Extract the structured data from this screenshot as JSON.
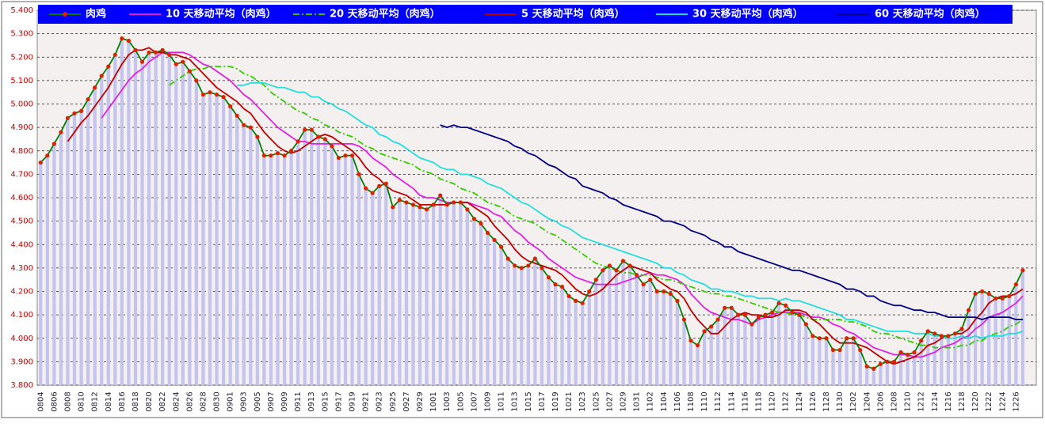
{
  "chart_data": {
    "type": "line",
    "categories": [
      "0804",
      null,
      "0806",
      null,
      "0808",
      null,
      "0810",
      null,
      "0812",
      null,
      "0814",
      null,
      "0816",
      null,
      "0818",
      null,
      "0820",
      null,
      "0822",
      null,
      "0824",
      null,
      "0826",
      null,
      "0828",
      null,
      "0830",
      null,
      "0901",
      null,
      "0903",
      null,
      "0905",
      null,
      "0907",
      null,
      "0909",
      null,
      "0911",
      null,
      "0913",
      null,
      "0915",
      null,
      "0917",
      null,
      "0919",
      null,
      "0921",
      null,
      "0923",
      null,
      "0925",
      null,
      "0927",
      null,
      "0929",
      null,
      "1001",
      null,
      "1003",
      null,
      "1005",
      null,
      "1007",
      null,
      "1009",
      null,
      "1011",
      null,
      "1013",
      null,
      "1015",
      null,
      "1017",
      null,
      "1019",
      null,
      "1021",
      null,
      "1023",
      null,
      "1025",
      null,
      "1027",
      null,
      "1029",
      null,
      "1031",
      null,
      "1102",
      null,
      "1104",
      null,
      "1106",
      null,
      "1108",
      null,
      "1110",
      null,
      "1112",
      null,
      "1114",
      null,
      "1116",
      null,
      "1118",
      null,
      "1120",
      null,
      "1122",
      null,
      "1124",
      null,
      "1126",
      null,
      "1128",
      null,
      "1130",
      null,
      "1202",
      null,
      "1204",
      null,
      "1206",
      null,
      "1208",
      null,
      "1210",
      null,
      "1212",
      null,
      "1214",
      null,
      "1216",
      null,
      "1218",
      null,
      "1220",
      null,
      "1222",
      null,
      "1224",
      null,
      "1226",
      null
    ],
    "series": [
      {
        "name": "肉鸡",
        "color": "#008000",
        "marker_color": "#e02000",
        "bar_color": "#c4c4ee",
        "line_style": "solid",
        "marker": "circle",
        "values": [
          4.75,
          4.78,
          4.83,
          4.88,
          4.94,
          4.96,
          4.97,
          5.02,
          5.07,
          5.12,
          5.16,
          5.21,
          5.28,
          5.27,
          5.23,
          5.18,
          5.22,
          5.22,
          5.23,
          5.21,
          5.17,
          5.18,
          5.14,
          5.1,
          5.04,
          5.05,
          5.04,
          5.03,
          4.99,
          4.95,
          4.91,
          4.9,
          4.86,
          4.78,
          4.78,
          4.79,
          4.78,
          4.8,
          4.84,
          4.89,
          4.89,
          4.86,
          4.85,
          4.82,
          4.77,
          4.78,
          4.78,
          4.7,
          4.64,
          4.62,
          4.65,
          4.66,
          4.56,
          4.59,
          4.58,
          4.57,
          4.56,
          4.55,
          4.57,
          4.61,
          4.57,
          4.58,
          4.58,
          4.55,
          4.51,
          4.49,
          4.45,
          4.42,
          4.39,
          4.34,
          4.31,
          4.3,
          4.31,
          4.34,
          4.3,
          4.26,
          4.23,
          4.22,
          4.18,
          4.16,
          4.15,
          4.2,
          4.25,
          4.29,
          4.31,
          4.29,
          4.33,
          4.31,
          4.27,
          4.23,
          4.25,
          4.2,
          4.2,
          4.19,
          4.16,
          4.08,
          3.99,
          3.97,
          4.03,
          4.05,
          4.08,
          4.13,
          4.13,
          4.1,
          4.1,
          4.06,
          4.09,
          4.1,
          4.11,
          4.15,
          4.14,
          4.11,
          4.1,
          4.06,
          4.01,
          4.0,
          4.0,
          3.95,
          3.95,
          4.0,
          4.0,
          3.95,
          3.88,
          3.87,
          3.89,
          3.9,
          3.9,
          3.94,
          3.93,
          3.94,
          3.99,
          4.03,
          4.02,
          4.01,
          4.01,
          4.02,
          4.04,
          4.12,
          4.19,
          4.2,
          4.19,
          4.17,
          4.17,
          4.18,
          4.23,
          4.29
        ]
      },
      {
        "name": "10 天移动平均（肉鸡）",
        "color": "#e020e0",
        "line_style": "solid",
        "values": [
          null,
          null,
          null,
          null,
          null,
          null,
          null,
          null,
          null,
          4.94,
          4.98,
          5.02,
          5.06,
          5.1,
          5.13,
          5.15,
          5.18,
          5.2,
          5.22,
          5.22,
          5.22,
          5.22,
          5.21,
          5.19,
          5.17,
          5.16,
          5.14,
          5.12,
          5.1,
          5.07,
          5.04,
          5.02,
          4.99,
          4.96,
          4.93,
          4.9,
          4.88,
          4.86,
          4.84,
          4.84,
          4.83,
          4.83,
          4.83,
          4.83,
          4.83,
          4.83,
          4.83,
          4.82,
          4.8,
          4.77,
          4.75,
          4.73,
          4.7,
          4.68,
          4.66,
          4.64,
          4.61,
          4.6,
          4.6,
          4.59,
          4.58,
          4.58,
          4.58,
          4.58,
          4.57,
          4.56,
          4.55,
          4.53,
          4.52,
          4.49,
          4.46,
          4.44,
          4.41,
          4.39,
          4.37,
          4.34,
          4.32,
          4.3,
          4.28,
          4.26,
          4.25,
          4.24,
          4.23,
          4.23,
          4.23,
          4.23,
          4.24,
          4.25,
          4.26,
          4.27,
          4.28,
          4.27,
          4.27,
          4.26,
          4.25,
          4.23,
          4.19,
          4.16,
          4.13,
          4.11,
          4.1,
          4.09,
          4.08,
          4.08,
          4.07,
          4.06,
          4.08,
          4.09,
          4.1,
          4.11,
          4.11,
          4.11,
          4.11,
          4.1,
          4.09,
          4.09,
          4.08,
          4.06,
          4.05,
          4.03,
          4.02,
          4.0,
          3.98,
          3.96,
          3.95,
          3.94,
          3.93,
          3.93,
          3.93,
          3.92,
          3.92,
          3.93,
          3.94,
          3.96,
          3.97,
          3.98,
          4.0,
          4.01,
          4.04,
          4.06,
          4.09,
          4.1,
          4.11,
          4.13,
          4.15,
          4.18
        ]
      },
      {
        "name": "20 天移动平均（肉鸡）",
        "color": "#33cc00",
        "line_style": "dash-dot",
        "values": [
          null,
          null,
          null,
          null,
          null,
          null,
          null,
          null,
          null,
          null,
          null,
          null,
          null,
          null,
          null,
          null,
          null,
          null,
          null,
          5.08,
          5.1,
          5.12,
          5.14,
          5.15,
          5.15,
          5.16,
          5.16,
          5.16,
          5.16,
          5.15,
          5.13,
          5.12,
          5.1,
          5.08,
          5.05,
          5.03,
          5.01,
          4.99,
          4.97,
          4.96,
          4.94,
          4.93,
          4.91,
          4.9,
          4.88,
          4.87,
          4.86,
          4.84,
          4.82,
          4.81,
          4.79,
          4.78,
          4.77,
          4.76,
          4.75,
          4.74,
          4.72,
          4.71,
          4.7,
          4.68,
          4.67,
          4.66,
          4.64,
          4.63,
          4.62,
          4.6,
          4.58,
          4.57,
          4.56,
          4.54,
          4.52,
          4.51,
          4.5,
          4.49,
          4.47,
          4.45,
          4.44,
          4.42,
          4.4,
          4.38,
          4.36,
          4.34,
          4.32,
          4.31,
          4.3,
          4.29,
          4.28,
          4.28,
          4.27,
          4.27,
          4.27,
          4.26,
          4.25,
          4.25,
          4.24,
          4.23,
          4.22,
          4.21,
          4.2,
          4.19,
          4.19,
          4.18,
          4.18,
          4.17,
          4.16,
          4.15,
          4.14,
          4.13,
          4.12,
          4.11,
          4.11,
          4.1,
          4.1,
          4.09,
          4.08,
          4.08,
          4.08,
          4.08,
          4.08,
          4.07,
          4.07,
          4.06,
          4.05,
          4.03,
          4.02,
          4.02,
          4.01,
          4.0,
          3.99,
          3.98,
          3.97,
          3.97,
          3.96,
          3.96,
          3.96,
          3.96,
          3.97,
          3.97,
          3.99,
          3.99,
          4.01,
          4.02,
          4.03,
          4.05,
          4.06,
          4.08
        ]
      },
      {
        "name": "5 天移动平均（肉鸡）",
        "color": "#c00000",
        "line_style": "solid",
        "values": [
          null,
          null,
          null,
          null,
          4.84,
          4.88,
          4.92,
          4.95,
          4.99,
          5.03,
          5.07,
          5.12,
          5.17,
          5.21,
          5.23,
          5.23,
          5.24,
          5.22,
          5.22,
          5.21,
          5.21,
          5.2,
          5.19,
          5.16,
          5.13,
          5.1,
          5.07,
          5.05,
          5.03,
          5.01,
          4.98,
          4.96,
          4.92,
          4.88,
          4.85,
          4.82,
          4.8,
          4.79,
          4.8,
          4.82,
          4.84,
          4.86,
          4.87,
          4.86,
          4.84,
          4.82,
          4.8,
          4.77,
          4.73,
          4.7,
          4.68,
          4.65,
          4.63,
          4.62,
          4.61,
          4.59,
          4.57,
          4.57,
          4.57,
          4.57,
          4.57,
          4.58,
          4.58,
          4.58,
          4.56,
          4.54,
          4.52,
          4.48,
          4.45,
          4.42,
          4.38,
          4.35,
          4.33,
          4.32,
          4.31,
          4.3,
          4.29,
          4.27,
          4.24,
          4.21,
          4.19,
          4.18,
          4.19,
          4.21,
          4.24,
          4.27,
          4.29,
          4.31,
          4.3,
          4.29,
          4.28,
          4.25,
          4.23,
          4.21,
          4.2,
          4.17,
          4.12,
          4.08,
          4.05,
          4.02,
          4.02,
          4.05,
          4.08,
          4.1,
          4.11,
          4.1,
          4.1,
          4.09,
          4.09,
          4.1,
          4.12,
          4.12,
          4.12,
          4.11,
          4.08,
          4.06,
          4.03,
          4.0,
          3.98,
          3.98,
          3.98,
          3.97,
          3.96,
          3.94,
          3.92,
          3.9,
          3.89,
          3.9,
          3.91,
          3.92,
          3.94,
          3.97,
          3.98,
          4.0,
          4.01,
          4.02,
          4.02,
          4.04,
          4.08,
          4.11,
          4.15,
          4.17,
          4.18,
          4.18,
          4.19,
          4.21
        ]
      },
      {
        "name": "30 天移动平均（肉鸡）",
        "color": "#22dddd",
        "line_style": "solid",
        "values": [
          null,
          null,
          null,
          null,
          null,
          null,
          null,
          null,
          null,
          null,
          null,
          null,
          null,
          null,
          null,
          null,
          null,
          null,
          null,
          null,
          null,
          null,
          null,
          null,
          null,
          null,
          null,
          null,
          null,
          5.08,
          5.08,
          5.09,
          5.09,
          5.09,
          5.08,
          5.07,
          5.07,
          5.06,
          5.05,
          5.05,
          5.03,
          5.03,
          5.01,
          5.0,
          4.98,
          4.97,
          4.95,
          4.93,
          4.91,
          4.9,
          4.87,
          4.86,
          4.84,
          4.83,
          4.81,
          4.79,
          4.77,
          4.76,
          4.75,
          4.73,
          4.72,
          4.72,
          4.7,
          4.7,
          4.69,
          4.68,
          4.66,
          4.65,
          4.64,
          4.62,
          4.6,
          4.58,
          4.57,
          4.55,
          4.53,
          4.51,
          4.5,
          4.48,
          4.47,
          4.45,
          4.43,
          4.42,
          4.41,
          4.4,
          4.39,
          4.38,
          4.37,
          4.36,
          4.35,
          4.34,
          4.33,
          4.32,
          4.3,
          4.3,
          4.28,
          4.27,
          4.25,
          4.24,
          4.23,
          4.21,
          4.21,
          4.2,
          4.2,
          4.19,
          4.18,
          4.18,
          4.17,
          4.17,
          4.17,
          4.16,
          4.17,
          4.16,
          4.16,
          4.15,
          4.14,
          4.13,
          4.12,
          4.11,
          4.1,
          4.08,
          4.08,
          4.07,
          4.06,
          4.05,
          4.04,
          4.03,
          4.03,
          4.03,
          4.03,
          4.02,
          4.02,
          4.02,
          4.01,
          4.01,
          4.0,
          4.0,
          4.01,
          4.0,
          4.01,
          4.0,
          4.01,
          4.01,
          4.01,
          4.02,
          4.02,
          4.03
        ]
      },
      {
        "name": "60 天移动平均（肉鸡）",
        "color": "#000080",
        "line_style": "solid",
        "values": [
          null,
          null,
          null,
          null,
          null,
          null,
          null,
          null,
          null,
          null,
          null,
          null,
          null,
          null,
          null,
          null,
          null,
          null,
          null,
          null,
          null,
          null,
          null,
          null,
          null,
          null,
          null,
          null,
          null,
          null,
          null,
          null,
          null,
          null,
          null,
          null,
          null,
          null,
          null,
          null,
          null,
          null,
          null,
          null,
          null,
          null,
          null,
          null,
          null,
          null,
          null,
          null,
          null,
          null,
          null,
          null,
          null,
          null,
          null,
          4.91,
          4.9,
          4.91,
          4.9,
          4.9,
          4.89,
          4.88,
          4.87,
          4.86,
          4.85,
          4.84,
          4.82,
          4.81,
          4.79,
          4.78,
          4.76,
          4.74,
          4.73,
          4.71,
          4.69,
          4.68,
          4.65,
          4.64,
          4.63,
          4.62,
          4.6,
          4.59,
          4.57,
          4.56,
          4.55,
          4.54,
          4.53,
          4.52,
          4.5,
          4.5,
          4.49,
          4.48,
          4.46,
          4.45,
          4.44,
          4.42,
          4.41,
          4.39,
          4.39,
          4.37,
          4.36,
          4.35,
          4.34,
          4.33,
          4.32,
          4.31,
          4.3,
          4.29,
          4.29,
          4.28,
          4.27,
          4.26,
          4.25,
          4.24,
          4.23,
          4.21,
          4.21,
          4.2,
          4.18,
          4.18,
          4.16,
          4.15,
          4.14,
          4.14,
          4.13,
          4.12,
          4.12,
          4.11,
          4.11,
          4.1,
          4.09,
          4.09,
          4.09,
          4.09,
          4.09,
          4.08,
          4.09,
          4.09,
          4.09,
          4.09,
          4.08,
          4.08
        ]
      }
    ],
    "ylim": [
      3.8,
      5.4
    ],
    "yticks": [
      {
        "value": 3.8,
        "label": "3.800"
      },
      {
        "value": 3.9,
        "label": "3.900"
      },
      {
        "value": 4.0,
        "label": "4.000"
      },
      {
        "value": 4.1,
        "label": "4.100"
      },
      {
        "value": 4.2,
        "label": "4.200"
      },
      {
        "value": 4.3,
        "label": "4.300"
      },
      {
        "value": 4.4,
        "label": "4.400"
      },
      {
        "value": 4.5,
        "label": "4.500"
      },
      {
        "value": 4.6,
        "label": "4.600"
      },
      {
        "value": 4.7,
        "label": "4.700"
      },
      {
        "value": 4.8,
        "label": "4.800"
      },
      {
        "value": 4.9,
        "label": "4.900"
      },
      {
        "value": 5.0,
        "label": "5.000"
      },
      {
        "value": 5.1,
        "label": "5.100"
      },
      {
        "value": 5.2,
        "label": "5.200"
      },
      {
        "value": 5.3,
        "label": "5.300"
      },
      {
        "value": 5.4,
        "label": "5.400"
      }
    ],
    "grid": true,
    "legend": "top",
    "legend_color": "#0000ff"
  }
}
